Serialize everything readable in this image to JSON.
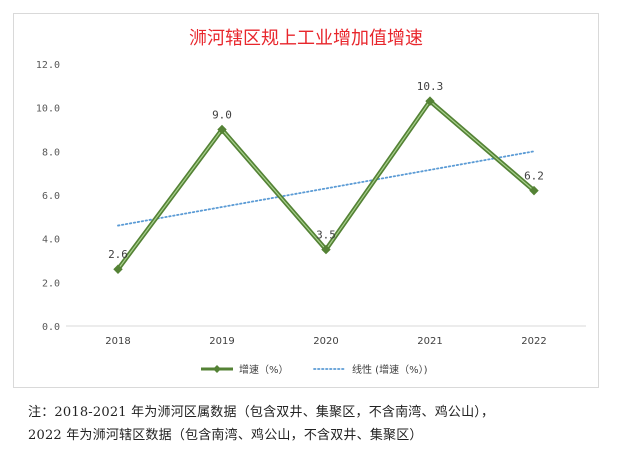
{
  "chart_data": {
    "type": "line",
    "title": "浉河辖区规上工业增加值增速",
    "categories": [
      "2018",
      "2019",
      "2020",
      "2021",
      "2022"
    ],
    "series": [
      {
        "name": "增速（%）",
        "values": [
          2.6,
          9.0,
          3.5,
          10.3,
          6.2
        ],
        "data_labels": [
          "2.6",
          "9.0",
          "3.5",
          "10.3",
          "6.2"
        ],
        "color": "#548235",
        "marker": "diamond"
      },
      {
        "name": "线性 (增速（%）)",
        "type": "trendline",
        "start": 4.6,
        "end": 8.0,
        "color": "#5b9bd5",
        "style": "dotted"
      }
    ],
    "y_ticks": [
      "0.0",
      "2.0",
      "4.0",
      "6.0",
      "8.0",
      "10.0",
      "12.0"
    ],
    "ylim": [
      0,
      12
    ],
    "xlabel": "",
    "ylabel": "",
    "grid": false,
    "legend_position": "bottom"
  },
  "footnote": {
    "line1": "注：2018-2021 年为浉河区属数据（包含双井、集聚区，不含南湾、鸡公山），",
    "line2": "2022 年为浉河辖区数据（包含南湾、鸡公山，不含双井、集聚区）"
  }
}
